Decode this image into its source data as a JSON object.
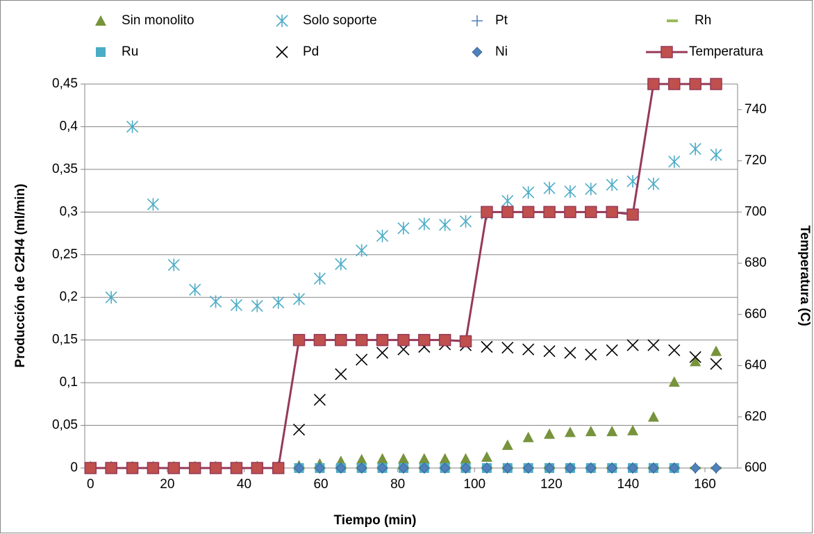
{
  "chart_data": {
    "type": "scatter",
    "x_label": "Tiempo (min)",
    "y_label": "Producción de C2H4 (ml/min)",
    "y2_label": "Temperatura (C)",
    "legend": "top",
    "grid": true,
    "xlim": [
      -1.5,
      168.5
    ],
    "xticks": [
      0,
      20,
      40,
      60,
      80,
      100,
      120,
      140,
      160
    ],
    "ylim": [
      0,
      0.45
    ],
    "yticks": [
      0,
      {
        "value": 0.05,
        "label": "0,05"
      },
      {
        "value": 0.1,
        "label": "0,1"
      },
      {
        "value": 0.15,
        "label": "0,15"
      },
      {
        "value": 0.2,
        "label": "0,2"
      },
      {
        "value": 0.25,
        "label": "0,25"
      },
      {
        "value": 0.3,
        "label": "0,3"
      },
      {
        "value": 0.35,
        "label": "0,35"
      },
      {
        "value": 0.4,
        "label": "0,4"
      },
      {
        "value": 0.45,
        "label": "0,45"
      }
    ],
    "y2lim": [
      600,
      750
    ],
    "y2ticks": [
      600,
      620,
      640,
      660,
      680,
      700,
      720,
      740
    ],
    "x": [
      0,
      5.4,
      10.9,
      16.3,
      21.7,
      27.2,
      32.6,
      38.0,
      43.4,
      48.9,
      54.3,
      59.7,
      65.2,
      70.6,
      76.0,
      81.5,
      86.9,
      92.3,
      97.7,
      103.2,
      108.6,
      114.0,
      119.5,
      124.9,
      130.3,
      135.8,
      141.2,
      146.6,
      152.0,
      157.5,
      162.9
    ],
    "series": [
      {
        "name": "Sin monolito",
        "color": "#77933c",
        "marker": "triangle",
        "values": [
          0.002,
          0.002,
          0.002,
          0.002,
          0.002,
          0.002,
          0.002,
          0.002,
          0.002,
          0.002,
          0.003,
          0.005,
          0.008,
          0.01,
          0.011,
          0.011,
          0.011,
          0.011,
          0.011,
          0.013,
          0.027,
          0.036,
          0.04,
          0.042,
          0.043,
          0.043,
          0.044,
          0.06,
          0.101,
          0.125,
          0.137
        ]
      },
      {
        "name": "Solo soporte",
        "color": "#4bacc6",
        "marker": "asterisk",
        "values": [
          null,
          0.2,
          0.4,
          0.309,
          0.238,
          0.209,
          0.195,
          0.191,
          0.19,
          0.194,
          0.198,
          0.222,
          0.239,
          0.255,
          0.272,
          0.281,
          0.286,
          0.285,
          0.289,
          0.298,
          0.313,
          0.323,
          0.328,
          0.324,
          0.327,
          0.332,
          0.336,
          0.333,
          0.359,
          0.374,
          0.367
        ]
      },
      {
        "name": "Pt",
        "color": "#4f81bd",
        "marker": "plus",
        "values": [
          0,
          0,
          0,
          0,
          0,
          0,
          0,
          0,
          0,
          0,
          0,
          0,
          0,
          0,
          0,
          0,
          0,
          0,
          0,
          0,
          0,
          0,
          0,
          0,
          0,
          0,
          0,
          0,
          0,
          0,
          0
        ]
      },
      {
        "name": "Rh",
        "color": "#9bbb59",
        "marker": "dash",
        "values": [
          0,
          0,
          0,
          0,
          0,
          0,
          0,
          0,
          0,
          0,
          0,
          0,
          0,
          0,
          0,
          0,
          0,
          0,
          0,
          0,
          0,
          0,
          0,
          0,
          0,
          0,
          0,
          0,
          0,
          0,
          0
        ]
      },
      {
        "name": "Ru",
        "color": "#4bacc6",
        "marker": "square",
        "values": [
          0,
          0,
          0,
          0,
          0,
          0,
          0,
          0,
          0,
          0,
          0,
          0,
          0,
          0,
          0,
          0,
          0,
          0,
          0,
          0,
          0,
          0,
          0,
          0,
          0,
          0,
          0,
          0,
          0,
          null,
          null
        ]
      },
      {
        "name": "Pd",
        "color": "#000000",
        "marker": "x",
        "values": [
          0,
          0,
          0,
          0,
          0,
          0,
          0,
          0,
          0,
          0,
          0.045,
          0.08,
          0.11,
          0.127,
          0.135,
          0.139,
          0.142,
          0.145,
          0.144,
          0.142,
          0.141,
          0.139,
          0.137,
          0.135,
          0.133,
          0.138,
          0.144,
          0.144,
          0.138,
          0.13,
          0.122
        ]
      },
      {
        "name": "Ni",
        "color": "#4f81bd",
        "marker": "diamond",
        "values": [
          null,
          null,
          null,
          null,
          null,
          null,
          null,
          null,
          null,
          null,
          0,
          0,
          0,
          0,
          0,
          0,
          0,
          0,
          0,
          0,
          0,
          0,
          0,
          0,
          0,
          0,
          0,
          0,
          0,
          0,
          0
        ]
      },
      {
        "name": "Temperatura",
        "color": "#953959",
        "marker": "square",
        "line": true,
        "axis": "y2",
        "values": [
          600,
          600,
          600,
          600,
          600,
          600,
          600,
          600,
          600,
          600,
          650,
          650,
          650,
          650,
          650,
          650,
          650,
          650,
          649.5,
          700,
          700,
          700,
          700,
          700,
          700,
          700,
          699,
          750,
          750,
          750,
          750
        ]
      }
    ]
  }
}
